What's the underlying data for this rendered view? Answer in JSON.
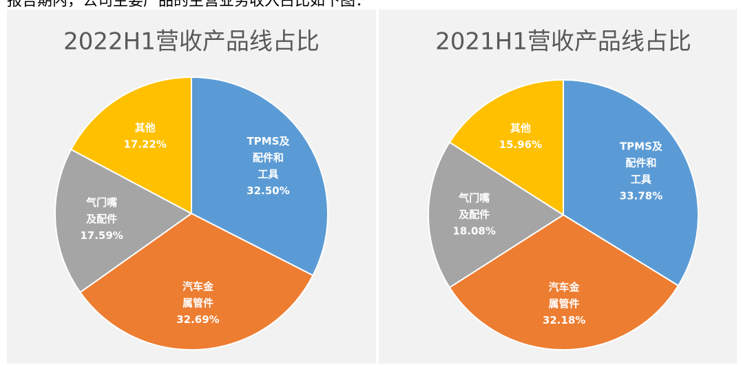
{
  "caption": "报告期内，公司主要产品的主营业务收入占比如下图：",
  "chart_data": [
    {
      "type": "pie",
      "title": "2022H1营收产品线占比",
      "categories": [
        [
          "TPMS及",
          "配件和",
          "工具"
        ],
        [
          "汽车金",
          "属管件"
        ],
        [
          "气门嘴",
          "及配件"
        ],
        [
          "其他"
        ]
      ],
      "values": [
        32.5,
        32.69,
        17.59,
        17.22
      ],
      "value_labels": [
        "32.50%",
        "32.69%",
        "17.59%",
        "17.22%"
      ],
      "colors": [
        "#5b9bd5",
        "#ed7d31",
        "#a5a5a5",
        "#ffc000"
      ]
    },
    {
      "type": "pie",
      "title": "2021H1营收产品线占比",
      "categories": [
        [
          "TPMS及",
          "配件和",
          "工具"
        ],
        [
          "汽车金",
          "属管件"
        ],
        [
          "气门嘴",
          "及配件"
        ],
        [
          "其他"
        ]
      ],
      "values": [
        33.78,
        32.18,
        18.08,
        15.96
      ],
      "value_labels": [
        "33.78%",
        "32.18%",
        "18.08%",
        "15.96%"
      ],
      "colors": [
        "#5b9bd5",
        "#ed7d31",
        "#a5a5a5",
        "#ffc000"
      ]
    }
  ]
}
